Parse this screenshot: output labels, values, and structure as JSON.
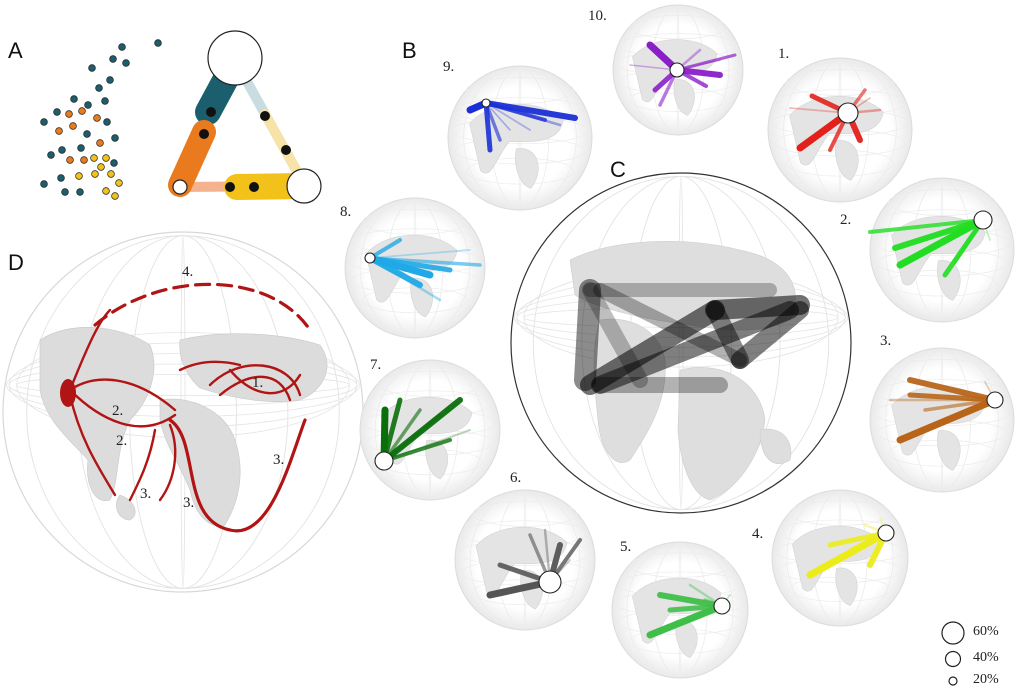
{
  "panels": {
    "A": "A",
    "B": "B",
    "C": "C",
    "D": "D"
  },
  "globe_numbers": [
    "10.",
    "1.",
    "2.",
    "3.",
    "4.",
    "5.",
    "6.",
    "7.",
    "8.",
    "9."
  ],
  "route_labels": [
    "4.",
    "1.",
    "2.",
    "2.",
    "3.",
    "3.",
    "3."
  ],
  "legend": [
    "60%",
    "40%",
    "20%"
  ],
  "colors": {
    "g1": "#e3201b",
    "g2": "#22dd22",
    "g3": "#b8651a",
    "g4": "#ecec1a",
    "g5": "#3fbf4a",
    "g6": "#555555",
    "g7": "#0a6e0a",
    "g8": "#1fa9e6",
    "g9": "#1a2fd6",
    "g10": "#8a1fc8",
    "routes": "#b01414",
    "teal": "#1b5f6e",
    "orange": "#ea7a1e",
    "yellow": "#f2c21a"
  }
}
